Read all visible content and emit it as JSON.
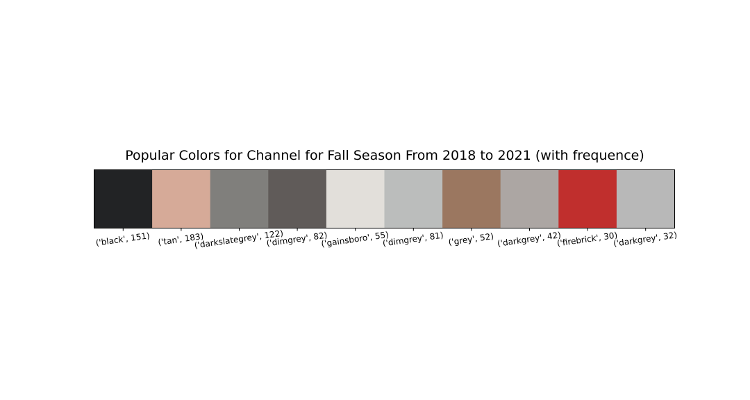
{
  "chart_data": {
    "type": "bar",
    "title": "Popular Colors for Channel for Fall Season From 2018 to 2021 (with frequence)",
    "xlabel": "",
    "ylabel": "",
    "grid": false,
    "categories": [
      "('black', 151)",
      "('tan', 183)",
      "('darkslategrey', 122)",
      "('dimgrey', 82)",
      "('gainsboro', 55)",
      "('dimgrey', 81)",
      "('grey', 52)",
      "('darkgrey', 42)",
      "('firebrick', 30)",
      "('darkgrey', 32)"
    ],
    "colors": [
      "#222325",
      "#d6aa98",
      "#807f7c",
      "#605b59",
      "#e2dfda",
      "#bbbdbc",
      "#9b7760",
      "#aca6a3",
      "#c02f2d",
      "#b8b8b8"
    ],
    "color_names": [
      "black",
      "tan",
      "darkslategrey",
      "dimgrey",
      "gainsboro",
      "dimgrey",
      "grey",
      "darkgrey",
      "firebrick",
      "darkgrey"
    ],
    "frequencies": [
      151,
      183,
      122,
      82,
      55,
      81,
      52,
      42,
      30,
      32
    ]
  }
}
